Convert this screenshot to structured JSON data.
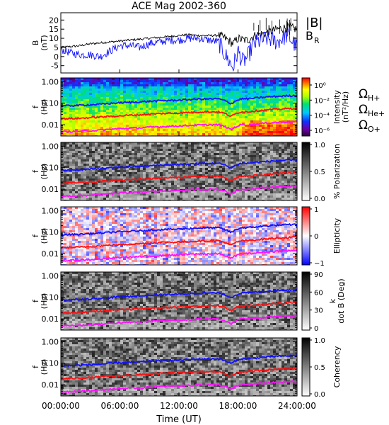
{
  "title": "ACE Mag 2002-360",
  "xlabel": "Time (UT)",
  "colors": {
    "B_total": "#000000",
    "B_R": "#1010ff",
    "H": "#1010ff",
    "He": "#ff1010",
    "O": "#ff10ff"
  },
  "chart_data": [
    {
      "panel": "field",
      "type": "line",
      "ylabel": "B (nT)",
      "ylim": [
        -9,
        24
      ],
      "yticks": [
        "20",
        "15",
        "10",
        "5",
        "0",
        "-5"
      ],
      "legend": [
        {
          "label": "|B|",
          "color": "#000000"
        },
        {
          "label": "B",
          "subscript": "R",
          "color": "#1010ff"
        }
      ],
      "xlim": [
        0,
        24
      ],
      "xticks": [
        "00:00:00",
        "06:00:00",
        "12:00:00",
        "18:00:00",
        "24:00:00"
      ],
      "series": [
        {
          "x": [
            0,
            1,
            2,
            3,
            4,
            5,
            6,
            7,
            8,
            9,
            10,
            11,
            12,
            13,
            14,
            15,
            16,
            16.5,
            17,
            17.5,
            18,
            18.5,
            19,
            19.5,
            20,
            21,
            22,
            23,
            24
          ],
          "values": [
            5,
            5.5,
            6,
            7,
            7.5,
            8,
            8.5,
            9,
            9.5,
            10,
            10.5,
            11,
            11.5,
            12,
            11.5,
            11.5,
            11.5,
            10.5,
            9,
            7,
            10,
            9,
            9,
            11,
            12,
            13,
            15,
            16,
            15
          ]
        },
        {
          "x": [
            0,
            1,
            2,
            3,
            4,
            5,
            6,
            7,
            8,
            9,
            10,
            11,
            12,
            13,
            14,
            15,
            16,
            16.5,
            17,
            17.5,
            18,
            18.5,
            19,
            19.5,
            20,
            21,
            22,
            23,
            24
          ],
          "values": [
            4,
            2,
            1,
            1,
            0,
            3,
            6,
            6,
            5,
            7,
            8,
            9,
            9,
            10,
            10,
            9,
            8,
            3,
            -2,
            -6,
            3,
            -3,
            0,
            6,
            8,
            10,
            8,
            12,
            5
          ]
        }
      ]
    },
    {
      "panel": "intensity",
      "type": "heatmap",
      "ylabel": "f (Hz)",
      "ylim": [
        0.003,
        1.5
      ],
      "yscale": "log",
      "yticks": [
        "1.00",
        "0.10",
        "0.01"
      ],
      "colorbar_label": "Intensity (nT²/Hz)",
      "colorbar_ticks": [
        "10⁰",
        "10⁻²",
        "10⁻⁴",
        "10⁻⁶"
      ],
      "colorbar_palette": "rainbow",
      "legend": [
        {
          "label": "Ω",
          "subscript": "H+",
          "color": "#1010ff"
        },
        {
          "label": "Ω",
          "subscript": "He+",
          "color": "#ff1010"
        },
        {
          "label": "Ω",
          "subscript": "O+",
          "color": "#ff10ff"
        }
      ]
    },
    {
      "panel": "polarization",
      "type": "heatmap",
      "ylabel": "f (Hz)",
      "ylim": [
        0.003,
        1.5
      ],
      "yscale": "log",
      "yticks": [
        "1.00",
        "0.10",
        "0.01"
      ],
      "colorbar_label": "% Polarization",
      "colorbar_ticks": [
        "1.0",
        "0.5",
        "0.0"
      ],
      "colorbar_palette": "gray"
    },
    {
      "panel": "ellipticity",
      "type": "heatmap",
      "ylabel": "f (Hz)",
      "ylim": [
        0.003,
        1.5
      ],
      "yscale": "log",
      "yticks": [
        "1.00",
        "0.10",
        "0.01"
      ],
      "colorbar_label": "Ellipticity",
      "colorbar_ticks": [
        "1",
        "0",
        "−1"
      ],
      "colorbar_palette": "bluewhitered"
    },
    {
      "panel": "kdotb",
      "type": "heatmap",
      "ylabel": "f (Hz)",
      "ylim": [
        0.003,
        1.5
      ],
      "yscale": "log",
      "yticks": [
        "1.00",
        "0.10",
        "0.01"
      ],
      "colorbar_label": "k dot B (Deg)",
      "colorbar_ticks": [
        "90",
        "60",
        "30",
        "0"
      ],
      "colorbar_palette": "gray"
    },
    {
      "panel": "coherency",
      "type": "heatmap",
      "ylabel": "f (Hz)",
      "ylim": [
        0.003,
        1.5
      ],
      "yscale": "log",
      "yticks": [
        "1.00",
        "0.10",
        "0.01"
      ],
      "colorbar_label": "Coherency",
      "colorbar_ticks": [
        "1.0",
        "0.5",
        "0.0"
      ],
      "colorbar_palette": "gray"
    }
  ],
  "gyrofrequency_curves": {
    "x": [
      0,
      2,
      4,
      6,
      8,
      10,
      12,
      14,
      16,
      16.7,
      17.3,
      17.8,
      18.3,
      19,
      20,
      22,
      24
    ],
    "H": [
      0.075,
      0.08,
      0.09,
      0.105,
      0.115,
      0.13,
      0.14,
      0.155,
      0.16,
      0.13,
      0.095,
      0.13,
      0.16,
      0.16,
      0.18,
      0.21,
      0.23
    ],
    "He": [
      0.019,
      0.02,
      0.023,
      0.026,
      0.029,
      0.033,
      0.035,
      0.039,
      0.04,
      0.033,
      0.024,
      0.033,
      0.04,
      0.04,
      0.045,
      0.053,
      0.058
    ],
    "O": [
      0.0047,
      0.005,
      0.0056,
      0.0066,
      0.0072,
      0.0081,
      0.0088,
      0.0097,
      0.01,
      0.0081,
      0.0059,
      0.0081,
      0.01,
      0.01,
      0.011,
      0.013,
      0.014
    ]
  }
}
